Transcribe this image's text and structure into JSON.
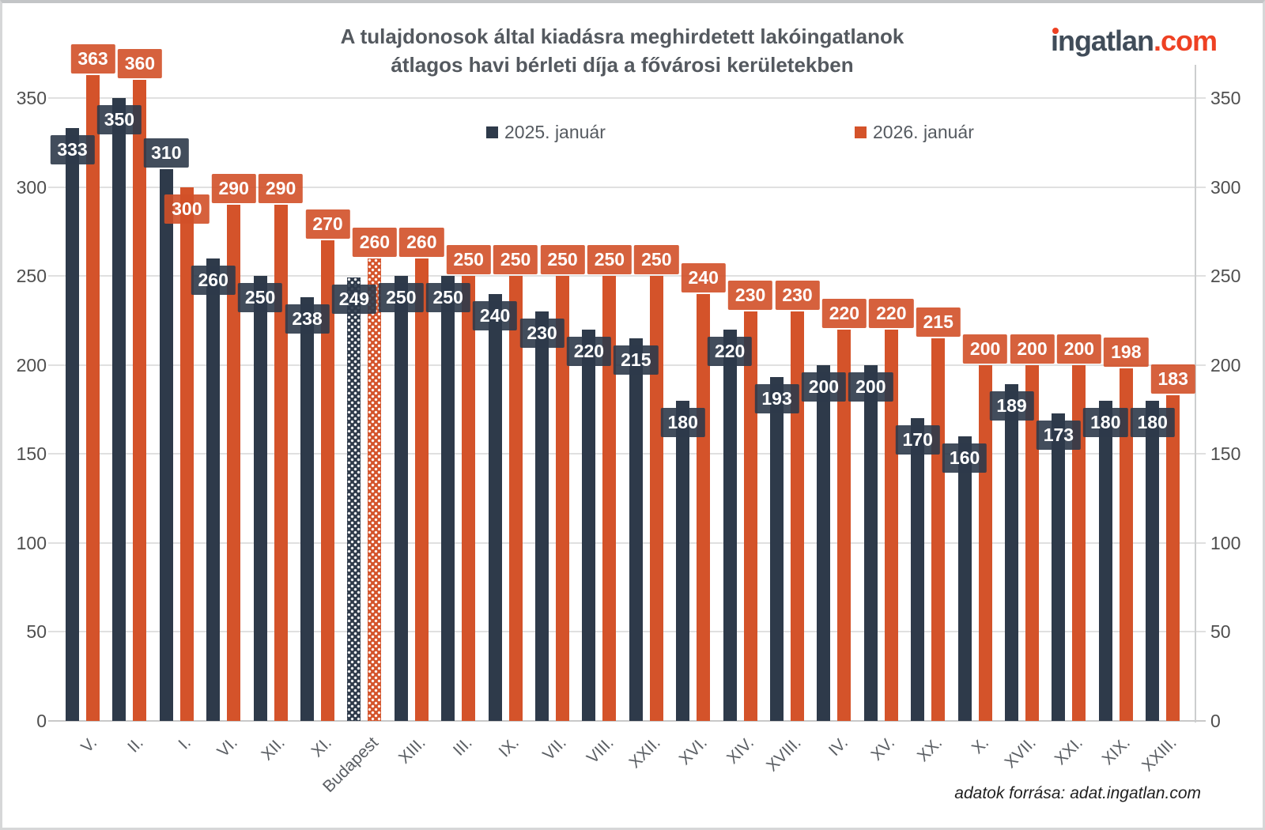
{
  "header": {
    "title_line1": "A tulajdonosok által kiadásra meghirdetett lakóingatlanok",
    "title_line2": "átlagos havi bérleti díja a fővárosi kerületekben",
    "logo_text": "ingatlan",
    "logo_suffix": ".com"
  },
  "footer": {
    "source": "adatok forrása: adat.ingatlan.com"
  },
  "chart_data": {
    "type": "bar",
    "title": "A tulajdonosok által kiadásra meghirdetett lakóingatlanok átlagos havi bérleti díja a fővárosi kerületekben",
    "xlabel": "",
    "ylabel": "",
    "categories": [
      "V.",
      "II.",
      "I.",
      "VI.",
      "XII.",
      "XI.",
      "Budapest",
      "XIII.",
      "III.",
      "IX.",
      "VII.",
      "VIII.",
      "XXII.",
      "XVI.",
      "XIV.",
      "XVIII.",
      "IV.",
      "XV.",
      "XX.",
      "X.",
      "XVII.",
      "XXI.",
      "XIX.",
      "XXIII."
    ],
    "series": [
      {
        "name": "2025. január",
        "color": "#2e3a4a",
        "values": [
          333,
          350,
          310,
          260,
          250,
          238,
          249,
          250,
          250,
          240,
          230,
          220,
          215,
          180,
          220,
          193,
          200,
          200,
          170,
          160,
          189,
          173,
          180,
          180
        ]
      },
      {
        "name": "2026. január",
        "color": "#d4532a",
        "values": [
          363,
          360,
          300,
          290,
          290,
          270,
          260,
          260,
          250,
          250,
          250,
          250,
          250,
          240,
          230,
          230,
          220,
          220,
          215,
          200,
          200,
          200,
          198,
          183
        ]
      }
    ],
    "highlight_category": "Budapest",
    "highlight_style": "dotted-pattern",
    "y_ticks": [
      0,
      50,
      100,
      150,
      200,
      250,
      300,
      350
    ],
    "ylim": [
      0,
      375
    ],
    "grid": true,
    "dual_y_axis": true,
    "legend_position": "top",
    "value_labels": "on-bars",
    "source": "adatok forrása: adat.ingatlan.com"
  }
}
